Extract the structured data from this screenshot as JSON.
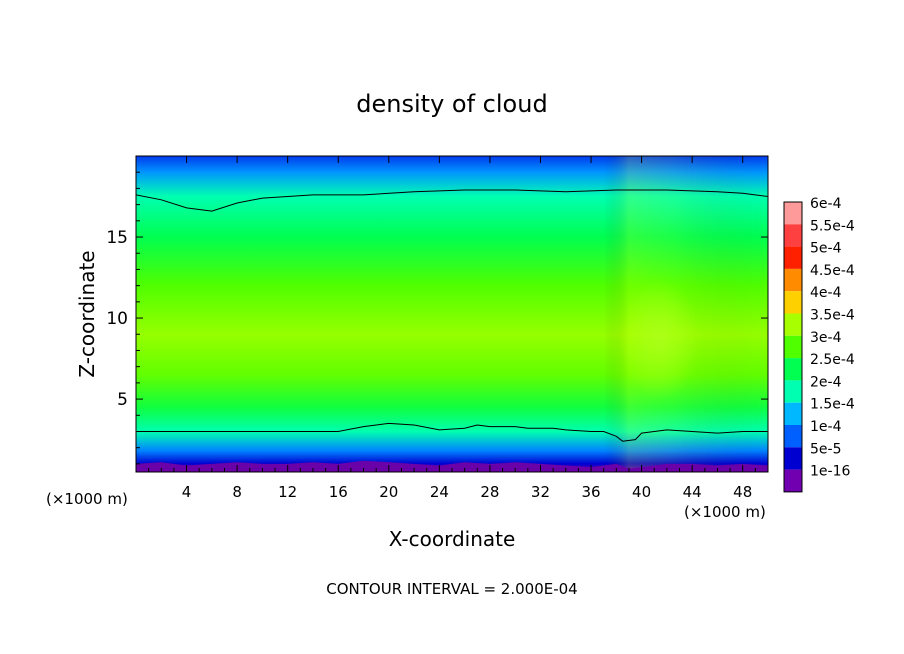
{
  "chart_data": {
    "type": "heatmap",
    "title": "density of cloud",
    "xlabel": "X-coordinate",
    "ylabel": "Z-coordinate",
    "x_unit_left": "(×1000 m)",
    "x_unit_right": "(×1000 m)",
    "footer": "CONTOUR INTERVAL = 2.000E-04",
    "xlim": [
      0,
      50
    ],
    "ylim": [
      0.5,
      20
    ],
    "x_ticks": [
      "4",
      "8",
      "12",
      "16",
      "20",
      "24",
      "28",
      "32",
      "36",
      "40",
      "44",
      "48"
    ],
    "x_tick_values": [
      4,
      8,
      12,
      16,
      20,
      24,
      28,
      32,
      36,
      40,
      44,
      48
    ],
    "y_ticks": [
      "5",
      "10",
      "15"
    ],
    "y_tick_values": [
      5,
      10,
      15
    ],
    "colorbar": {
      "labels": [
        "6e-4",
        "5.5e-4",
        "5e-4",
        "4.5e-4",
        "4e-4",
        "3.5e-4",
        "3e-4",
        "2.5e-4",
        "2e-4",
        "1.5e-4",
        "1e-4",
        "5e-5",
        "1e-16"
      ],
      "colors": [
        "#ff9a9a",
        "#ff4040",
        "#ff2000",
        "#ff8c00",
        "#ffd000",
        "#a8ff00",
        "#50ff00",
        "#00ff50",
        "#00ffb0",
        "#00b8ff",
        "#0060ff",
        "#0000d0",
        "#7000b0"
      ]
    },
    "profile": {
      "heights": [
        0.5,
        1.0,
        1.8,
        3.0,
        4.5,
        6.5,
        9.0,
        12.0,
        15.0,
        17.5,
        19.0,
        20.0
      ],
      "values": [
        1e-16,
        5e-05,
        0.00012,
        0.0002,
        0.00026,
        0.00031,
        0.00034,
        0.0003,
        0.00025,
        0.0002,
        0.00013,
        8e-05
      ]
    },
    "contour_lower_2e-4": {
      "x": [
        0,
        10,
        16,
        18,
        20,
        22,
        24,
        26,
        27,
        28,
        30,
        31,
        33,
        34,
        36,
        37,
        38,
        38.5,
        39.5,
        40,
        42,
        44,
        46,
        48,
        50
      ],
      "z": [
        3.0,
        3.0,
        3.0,
        3.3,
        3.5,
        3.4,
        3.1,
        3.2,
        3.4,
        3.3,
        3.3,
        3.2,
        3.2,
        3.1,
        3.0,
        3.0,
        2.7,
        2.4,
        2.5,
        2.9,
        3.1,
        3.0,
        2.9,
        3.0,
        3.0
      ]
    },
    "contour_upper_2e-4": {
      "x": [
        0,
        2,
        4,
        6,
        8,
        10,
        14,
        18,
        22,
        26,
        30,
        34,
        38,
        42,
        46,
        48,
        50
      ],
      "z": [
        17.6,
        17.3,
        16.8,
        16.6,
        17.1,
        17.4,
        17.6,
        17.6,
        17.8,
        17.9,
        17.9,
        17.8,
        17.9,
        17.9,
        17.8,
        17.7,
        17.5
      ]
    },
    "legend_position": "right"
  }
}
